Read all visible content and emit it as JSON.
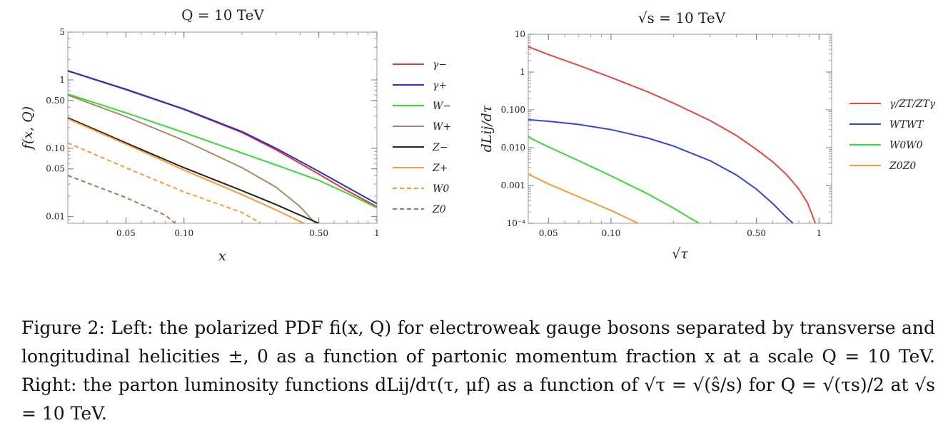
{
  "chart_data": [
    {
      "type": "line",
      "title": "Q = 10 TeV",
      "xlabel": "x",
      "ylabel": "f(x, Q)",
      "xscale": "log",
      "yscale": "log",
      "xlim": [
        0.025,
        1
      ],
      "ylim": [
        0.008,
        5
      ],
      "xticks": [
        {
          "v": 0.05,
          "label": "0.05"
        },
        {
          "v": 0.1,
          "label": "0.10"
        },
        {
          "v": 0.5,
          "label": "0.50"
        },
        {
          "v": 1,
          "label": "1"
        }
      ],
      "yticks": [
        {
          "v": 0.01,
          "label": "0.01"
        },
        {
          "v": 0.05,
          "label": "0.05"
        },
        {
          "v": 0.1,
          "label": "0.10"
        },
        {
          "v": 0.5,
          "label": "0.50"
        },
        {
          "v": 1,
          "label": "1"
        },
        {
          "v": 5,
          "label": "5"
        }
      ],
      "legend_position": "right",
      "series": [
        {
          "name": "γ−",
          "color": "#ee3333",
          "dash": "solid",
          "points": [
            [
              0.025,
              1.35
            ],
            [
              0.05,
              0.72
            ],
            [
              0.1,
              0.37
            ],
            [
              0.2,
              0.17
            ],
            [
              0.3,
              0.095
            ],
            [
              0.5,
              0.042
            ],
            [
              0.7,
              0.024
            ],
            [
              1.0,
              0.014
            ]
          ]
        },
        {
          "name": "γ+",
          "color": "#2233cc",
          "dash": "solid",
          "points": [
            [
              0.025,
              1.36
            ],
            [
              0.05,
              0.73
            ],
            [
              0.1,
              0.375
            ],
            [
              0.2,
              0.175
            ],
            [
              0.3,
              0.1
            ],
            [
              0.5,
              0.046
            ],
            [
              0.7,
              0.027
            ],
            [
              1.0,
              0.0155
            ]
          ]
        },
        {
          "name": "W−",
          "color": "#33dd33",
          "dash": "solid",
          "points": [
            [
              0.025,
              0.62
            ],
            [
              0.05,
              0.33
            ],
            [
              0.1,
              0.17
            ],
            [
              0.2,
              0.085
            ],
            [
              0.3,
              0.057
            ],
            [
              0.5,
              0.034
            ],
            [
              0.7,
              0.022
            ],
            [
              1.0,
              0.0135
            ]
          ]
        },
        {
          "name": "W+",
          "color": "#aa8866",
          "dash": "solid",
          "points": [
            [
              0.025,
              0.6
            ],
            [
              0.05,
              0.29
            ],
            [
              0.1,
              0.13
            ],
            [
              0.2,
              0.052
            ],
            [
              0.3,
              0.027
            ],
            [
              0.4,
              0.014
            ],
            [
              0.48,
              0.008
            ]
          ]
        },
        {
          "name": "Z−",
          "color": "#222222",
          "dash": "solid",
          "points": [
            [
              0.025,
              0.28
            ],
            [
              0.05,
              0.12
            ],
            [
              0.1,
              0.052
            ],
            [
              0.2,
              0.024
            ],
            [
              0.3,
              0.015
            ],
            [
              0.4,
              0.0105
            ],
            [
              0.5,
              0.008
            ]
          ]
        },
        {
          "name": "Z+",
          "color": "#ff9933",
          "dash": "solid",
          "points": [
            [
              0.025,
              0.27
            ],
            [
              0.05,
              0.115
            ],
            [
              0.1,
              0.048
            ],
            [
              0.2,
              0.021
            ],
            [
              0.3,
              0.0125
            ],
            [
              0.4,
              0.0085
            ],
            [
              0.42,
              0.008
            ]
          ]
        },
        {
          "name": "W0",
          "color": "#ff9933",
          "dash": "dashed",
          "points": [
            [
              0.025,
              0.12
            ],
            [
              0.05,
              0.052
            ],
            [
              0.1,
              0.023
            ],
            [
              0.2,
              0.0115
            ],
            [
              0.25,
              0.008
            ]
          ]
        },
        {
          "name": "Z0",
          "color": "#aa7755",
          "dash": "dashed",
          "points": [
            [
              0.025,
              0.04
            ],
            [
              0.05,
              0.019
            ],
            [
              0.08,
              0.0105
            ],
            [
              0.09,
              0.008
            ]
          ]
        }
      ]
    },
    {
      "type": "line",
      "title": "√s = 10 TeV",
      "xlabel": "√τ",
      "ylabel": "dLij/dτ",
      "xscale": "log",
      "yscale": "log",
      "xlim": [
        0.04,
        1.15
      ],
      "ylim": [
        0.0001,
        10
      ],
      "xticks": [
        {
          "v": 0.05,
          "label": "0.05"
        },
        {
          "v": 0.1,
          "label": "0.10"
        },
        {
          "v": 0.5,
          "label": "0.50"
        },
        {
          "v": 1,
          "label": "1"
        }
      ],
      "yticks": [
        {
          "v": 0.0001,
          "label": "10⁻⁴"
        },
        {
          "v": 0.001,
          "label": "0.001"
        },
        {
          "v": 0.01,
          "label": "0.010"
        },
        {
          "v": 0.1,
          "label": "0.100"
        },
        {
          "v": 1,
          "label": "1"
        },
        {
          "v": 10,
          "label": "10"
        }
      ],
      "legend_position": "right",
      "series": [
        {
          "name": "γ/ZT/ZTγ",
          "color": "#ee4444",
          "dash": "solid",
          "points": [
            [
              0.04,
              4.7
            ],
            [
              0.05,
              2.9
            ],
            [
              0.07,
              1.5
            ],
            [
              0.1,
              0.72
            ],
            [
              0.15,
              0.3
            ],
            [
              0.2,
              0.15
            ],
            [
              0.3,
              0.052
            ],
            [
              0.4,
              0.021
            ],
            [
              0.5,
              0.009
            ],
            [
              0.6,
              0.0042
            ],
            [
              0.7,
              0.0019
            ],
            [
              0.8,
              0.0008
            ],
            [
              0.88,
              0.00035
            ],
            [
              0.93,
              0.00016
            ],
            [
              0.96,
              0.0001
            ]
          ]
        },
        {
          "name": "WTWT",
          "color": "#3344dd",
          "dash": "solid",
          "points": [
            [
              0.04,
              0.055
            ],
            [
              0.05,
              0.05
            ],
            [
              0.07,
              0.041
            ],
            [
              0.1,
              0.03
            ],
            [
              0.15,
              0.018
            ],
            [
              0.2,
              0.011
            ],
            [
              0.3,
              0.0045
            ],
            [
              0.4,
              0.0019
            ],
            [
              0.5,
              0.0008
            ],
            [
              0.6,
              0.00033
            ],
            [
              0.7,
              0.00014
            ],
            [
              0.75,
              0.0001
            ]
          ]
        },
        {
          "name": "W0W0",
          "color": "#33dd33",
          "dash": "solid",
          "points": [
            [
              0.04,
              0.019
            ],
            [
              0.05,
              0.0105
            ],
            [
              0.07,
              0.0045
            ],
            [
              0.1,
              0.0018
            ],
            [
              0.15,
              0.0006
            ],
            [
              0.2,
              0.00025
            ],
            [
              0.25,
              0.00012
            ],
            [
              0.265,
              0.0001
            ]
          ]
        },
        {
          "name": "Z0Z0",
          "color": "#ff9933",
          "dash": "solid",
          "points": [
            [
              0.04,
              0.002
            ],
            [
              0.05,
              0.0011
            ],
            [
              0.07,
              0.0005
            ],
            [
              0.1,
              0.00022
            ],
            [
              0.13,
              0.00011
            ],
            [
              0.135,
              0.0001
            ]
          ]
        }
      ]
    }
  ],
  "caption": {
    "text": "Figure 2: Left: the polarized PDF fi(x, Q) for electroweak gauge bosons separated by transverse and longitudinal helicities ±, 0 as a function of partonic momentum fraction x at a scale Q = 10 TeV. Right: the parton luminosity functions dLij/dτ(τ, μf) as a function of √τ = √(ŝ/s) for Q = √(τs)/2 at √s = 10 TeV."
  }
}
